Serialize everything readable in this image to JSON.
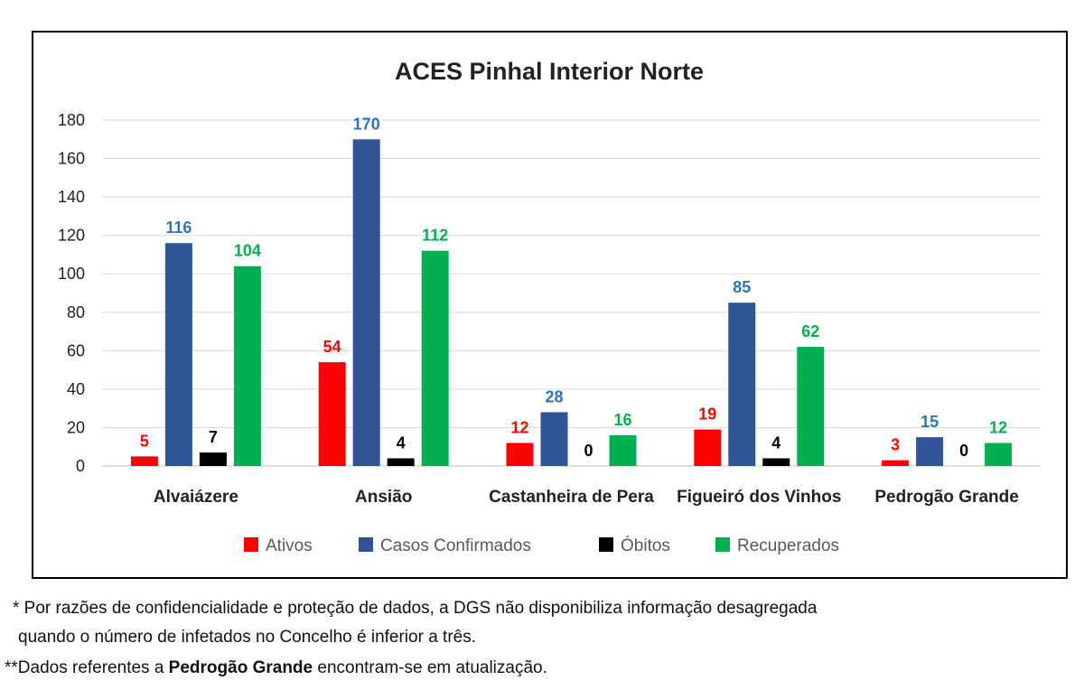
{
  "chart_data": {
    "type": "bar",
    "title": "ACES Pinhal Interior Norte",
    "categories": [
      "Alvaiázere",
      "Ansião",
      "Castanheira de Pera",
      "Figueiró dos Vinhos",
      "Pedrogão Grande"
    ],
    "series": [
      {
        "name": "Ativos",
        "color": "#ff0000",
        "values": [
          5,
          54,
          12,
          19,
          3
        ]
      },
      {
        "name": "Casos Confirmados",
        "color": "#2f5597",
        "values": [
          116,
          170,
          28,
          85,
          15
        ]
      },
      {
        "name": "Óbitos",
        "color": "#000000",
        "values": [
          7,
          4,
          0,
          4,
          0
        ]
      },
      {
        "name": "Recuperados",
        "color": "#00b050",
        "values": [
          104,
          112,
          16,
          62,
          12
        ]
      }
    ],
    "label_colors": [
      "#ff0000",
      "#2e75b6",
      "#000000",
      "#00b050"
    ],
    "ylim": [
      0,
      180
    ],
    "yticks": [
      0,
      20,
      40,
      60,
      80,
      100,
      120,
      140,
      160,
      180
    ],
    "grid": true,
    "legend": "bottom"
  },
  "notes": {
    "line1": "* Por razões de confidencialidade e proteção de dados, a DGS não disponibiliza informação desagregada",
    "line2": "quando o número de infetados no Concelho é inferior a três.",
    "line3_prefix": "**Dados referentes a ",
    "line3_bold": "Pedrogão Grande",
    "line3_suffix": " encontram-se em atualização."
  }
}
